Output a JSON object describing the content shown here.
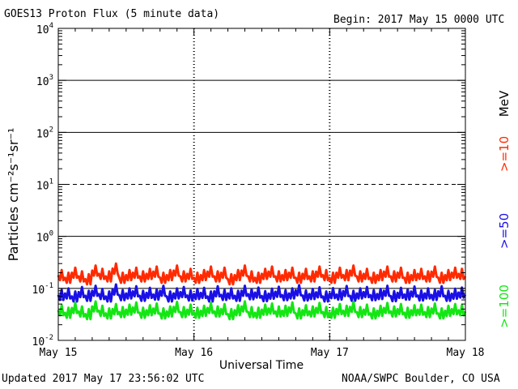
{
  "header": {
    "title": "GOES13 Proton Flux (5 minute data)",
    "begin": "Begin: 2017 May 15 0000 UTC"
  },
  "footer": {
    "updated": "Updated 2017 May 17 23:56:02 UTC",
    "credit": "NOAA/SWPC Boulder, CO USA"
  },
  "chart_data": {
    "type": "line",
    "title": "GOES13 Proton Flux (5 minute data)",
    "xlabel": "Universal Time",
    "ylabel": "Particles cm⁻²s⁻¹sr⁻¹",
    "y_scale": "log",
    "ylim": [
      0.01,
      10000
    ],
    "xlim": [
      0,
      3
    ],
    "x_unit": "days since 2017 May 15 0000 UTC",
    "x_ticks": [
      {
        "value": 0,
        "label": "May 15"
      },
      {
        "value": 1,
        "label": "May 16"
      },
      {
        "value": 2,
        "label": "May 17"
      },
      {
        "value": 3,
        "label": "May 18"
      }
    ],
    "y_ticks": [
      {
        "value": 0.01,
        "base": "10",
        "exp": "-2"
      },
      {
        "value": 0.1,
        "base": "10",
        "exp": "-1"
      },
      {
        "value": 1,
        "base": "10",
        "exp": "0"
      },
      {
        "value": 10,
        "base": "10",
        "exp": "1"
      },
      {
        "value": 100,
        "base": "10",
        "exp": "2"
      },
      {
        "value": 1000,
        "base": "10",
        "exp": "3"
      },
      {
        "value": 10000,
        "base": "10",
        "exp": "4"
      }
    ],
    "thresholds": [
      {
        "value": 1000,
        "style": "solid"
      },
      {
        "value": 100,
        "style": "solid"
      },
      {
        "value": 10,
        "style": "dashed"
      },
      {
        "value": 1,
        "style": "solid"
      },
      {
        "value": 0.1,
        "style": "solid"
      }
    ],
    "energy_unit": "MeV",
    "series": [
      {
        "name": ">=10",
        "color": "#ff2a00",
        "x": [
          0,
          0.05,
          0.1,
          0.15,
          0.2,
          0.25,
          0.3,
          0.35,
          0.4,
          0.45,
          0.5,
          0.55,
          0.6,
          0.65,
          0.7,
          0.75,
          0.8,
          0.85,
          0.9,
          0.95,
          1.0,
          1.05,
          1.1,
          1.15,
          1.2,
          1.25,
          1.3,
          1.35,
          1.4,
          1.45,
          1.5,
          1.55,
          1.6,
          1.65,
          1.7,
          1.75,
          1.8,
          1.85,
          1.9,
          1.95,
          2.0,
          2.05,
          2.1,
          2.15,
          2.2,
          2.25,
          2.3,
          2.35,
          2.4,
          2.45,
          2.5,
          2.55,
          2.6,
          2.65,
          2.7,
          2.75,
          2.8,
          2.85,
          2.9,
          2.95,
          2.999
        ],
        "y": [
          0.18,
          0.16,
          0.2,
          0.17,
          0.15,
          0.22,
          0.19,
          0.17,
          0.24,
          0.16,
          0.18,
          0.2,
          0.17,
          0.19,
          0.21,
          0.16,
          0.18,
          0.22,
          0.17,
          0.19,
          0.16,
          0.18,
          0.21,
          0.17,
          0.2,
          0.15,
          0.18,
          0.22,
          0.17,
          0.16,
          0.19,
          0.21,
          0.17,
          0.18,
          0.2,
          0.16,
          0.19,
          0.17,
          0.21,
          0.18,
          0.16,
          0.2,
          0.18,
          0.22,
          0.17,
          0.19,
          0.16,
          0.18,
          0.21,
          0.17,
          0.2,
          0.16,
          0.18,
          0.19,
          0.17,
          0.21,
          0.16,
          0.18,
          0.2,
          0.19,
          0.17
        ]
      },
      {
        "name": ">=50",
        "color": "#1a10e6",
        "x": [
          0,
          0.05,
          0.1,
          0.15,
          0.2,
          0.25,
          0.3,
          0.35,
          0.4,
          0.45,
          0.5,
          0.55,
          0.6,
          0.65,
          0.7,
          0.75,
          0.8,
          0.85,
          0.9,
          0.95,
          1.0,
          1.05,
          1.1,
          1.15,
          1.2,
          1.25,
          1.3,
          1.35,
          1.4,
          1.45,
          1.5,
          1.55,
          1.6,
          1.65,
          1.7,
          1.75,
          1.8,
          1.85,
          1.9,
          1.95,
          2.0,
          2.05,
          2.1,
          2.15,
          2.2,
          2.25,
          2.3,
          2.35,
          2.4,
          2.45,
          2.5,
          2.55,
          2.6,
          2.65,
          2.7,
          2.75,
          2.8,
          2.85,
          2.9,
          2.95,
          2.999
        ],
        "y": [
          0.075,
          0.08,
          0.07,
          0.085,
          0.072,
          0.09,
          0.078,
          0.07,
          0.095,
          0.074,
          0.08,
          0.088,
          0.072,
          0.082,
          0.076,
          0.09,
          0.07,
          0.08,
          0.085,
          0.073,
          0.078,
          0.082,
          0.07,
          0.088,
          0.075,
          0.08,
          0.072,
          0.09,
          0.077,
          0.083,
          0.071,
          0.079,
          0.086,
          0.074,
          0.08,
          0.092,
          0.073,
          0.078,
          0.084,
          0.07,
          0.081,
          0.076,
          0.089,
          0.072,
          0.08,
          0.085,
          0.074,
          0.078,
          0.09,
          0.071,
          0.082,
          0.076,
          0.087,
          0.073,
          0.08,
          0.075,
          0.088,
          0.072,
          0.079,
          0.083,
          0.076
        ]
      },
      {
        "name": ">=100",
        "color": "#14e614",
        "x": [
          0,
          0.05,
          0.1,
          0.15,
          0.2,
          0.25,
          0.3,
          0.35,
          0.4,
          0.45,
          0.5,
          0.55,
          0.6,
          0.65,
          0.7,
          0.75,
          0.8,
          0.85,
          0.9,
          0.95,
          1.0,
          1.05,
          1.1,
          1.15,
          1.2,
          1.25,
          1.3,
          1.35,
          1.4,
          1.45,
          1.5,
          1.55,
          1.6,
          1.65,
          1.7,
          1.75,
          1.8,
          1.85,
          1.9,
          1.95,
          2.0,
          2.05,
          2.1,
          2.15,
          2.2,
          2.25,
          2.3,
          2.35,
          2.4,
          2.45,
          2.5,
          2.55,
          2.6,
          2.65,
          2.7,
          2.75,
          2.8,
          2.85,
          2.9,
          2.95,
          2.999
        ],
        "y": [
          0.038,
          0.034,
          0.042,
          0.036,
          0.032,
          0.045,
          0.037,
          0.033,
          0.04,
          0.035,
          0.039,
          0.043,
          0.034,
          0.038,
          0.041,
          0.033,
          0.036,
          0.044,
          0.035,
          0.039,
          0.034,
          0.037,
          0.042,
          0.036,
          0.04,
          0.032,
          0.038,
          0.045,
          0.035,
          0.034,
          0.039,
          0.041,
          0.036,
          0.037,
          0.043,
          0.033,
          0.038,
          0.036,
          0.042,
          0.035,
          0.034,
          0.04,
          0.037,
          0.044,
          0.035,
          0.039,
          0.033,
          0.037,
          0.042,
          0.036,
          0.04,
          0.034,
          0.038,
          0.039,
          0.035,
          0.041,
          0.033,
          0.037,
          0.04,
          0.038,
          0.036
        ]
      }
    ]
  }
}
